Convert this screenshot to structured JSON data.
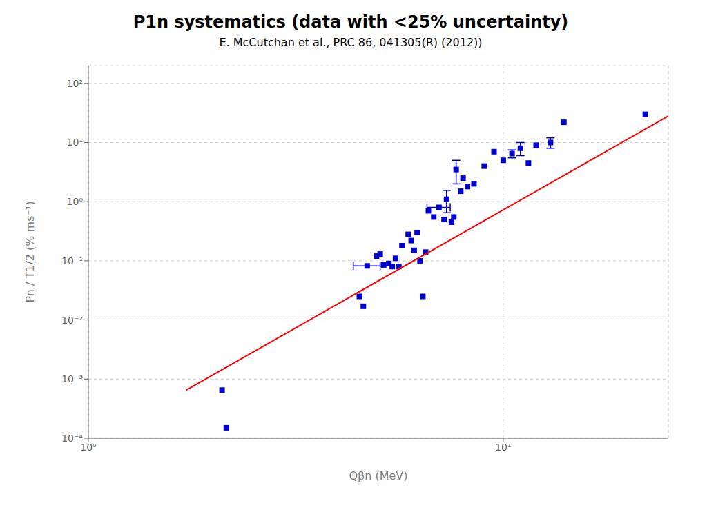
{
  "chart_data": {
    "type": "scatter",
    "title": "P1n systematics (data with <25% uncertainty)",
    "subtitle": "E. McCutchan et al., PRC 86, 041305(R) (2012))",
    "xlabel": "Qβn (MeV)",
    "ylabel": "Pn / T1/2 (% ms⁻¹)",
    "log": true,
    "grid": true,
    "xlim": [
      1.0,
      25.0
    ],
    "ylim": [
      0.0001,
      200.0
    ],
    "xticks": [
      {
        "value": 1,
        "label": "10⁰"
      },
      {
        "value": 10,
        "label": "10¹"
      }
    ],
    "yticks": [
      {
        "value": 0.0001,
        "label": "10⁻⁴"
      },
      {
        "value": 0.001,
        "label": "10⁻³"
      },
      {
        "value": 0.01,
        "label": "10⁻²"
      },
      {
        "value": 0.1,
        "label": "10⁻¹"
      },
      {
        "value": 1,
        "label": "10⁰"
      },
      {
        "value": 10,
        "label": "10¹"
      },
      {
        "value": 100,
        "label": "10²"
      }
    ],
    "series": [
      {
        "type": "scatter",
        "color": "#0000cc",
        "marker": "square",
        "x": [
          2.1,
          2.15,
          4.5,
          4.6,
          4.7,
          4.95,
          5.05,
          5.15,
          5.3,
          5.4,
          5.5,
          5.6,
          5.7,
          5.9,
          6.0,
          6.1,
          6.2,
          6.3,
          6.4,
          6.5,
          6.6,
          6.8,
          7.0,
          7.2,
          7.3,
          7.5,
          7.6,
          7.7,
          7.9,
          8.0,
          8.2,
          8.5,
          9.0,
          9.5,
          10.0,
          10.5,
          11.0,
          11.5,
          12.0,
          13.0,
          14.0,
          22.0
        ],
        "y": [
          0.00065,
          0.00015,
          0.025,
          0.017,
          0.082,
          0.12,
          0.13,
          0.085,
          0.09,
          0.08,
          0.11,
          0.08,
          0.18,
          0.28,
          0.22,
          0.15,
          0.3,
          0.1,
          0.025,
          0.14,
          0.7,
          0.55,
          0.8,
          0.5,
          1.1,
          0.45,
          0.55,
          3.5,
          1.5,
          2.5,
          1.8,
          2.0,
          4.0,
          7.0,
          5.0,
          6.5,
          8.0,
          4.5,
          9.0,
          10.0,
          22.0,
          30.0
        ],
        "xerr": [
          0,
          0,
          0,
          0,
          0.35,
          0,
          0,
          0,
          0,
          0,
          0,
          0,
          0,
          0,
          0,
          0,
          0,
          0,
          0,
          0,
          0,
          0,
          0.45,
          0,
          0,
          0,
          0,
          0,
          0,
          0,
          0,
          0,
          0,
          0,
          0,
          0,
          0,
          0,
          0,
          0,
          0,
          0
        ],
        "yerr": [
          0,
          0,
          0,
          0,
          0,
          0,
          0,
          0,
          0,
          0,
          0,
          0,
          0,
          0,
          0,
          0,
          0,
          0,
          0,
          0,
          0,
          0,
          0,
          0,
          0.45,
          0,
          0,
          1.5,
          0,
          0,
          0,
          0,
          0,
          0,
          0,
          1.0,
          2.0,
          0,
          0,
          2.0,
          0,
          0
        ]
      },
      {
        "type": "line",
        "color": "#ff0000",
        "line_style": "solid",
        "x": [
          1.72,
          25.0
        ],
        "y": [
          0.00065,
          28.0
        ]
      }
    ]
  }
}
